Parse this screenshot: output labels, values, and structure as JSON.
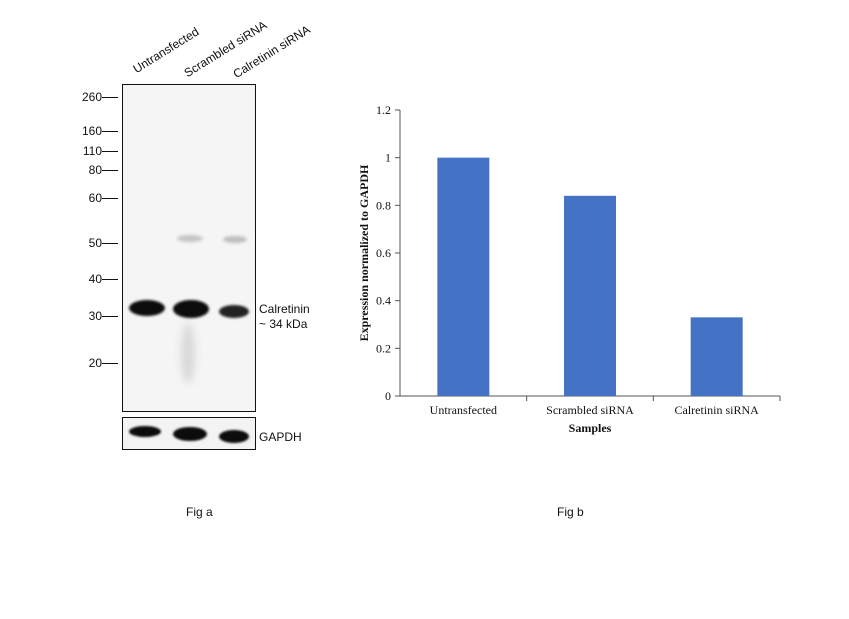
{
  "fig_a": {
    "lanes": [
      "Untransfected",
      "Scrambled siRNA",
      "Calretinin siRNA"
    ],
    "markers": [
      "260",
      "160",
      "110",
      "80",
      "60",
      "50",
      "40",
      "30",
      "20"
    ],
    "target_name": "Calretinin",
    "target_size": "~ 34 kDa",
    "control_label": "GAPDH",
    "caption": "Fig a"
  },
  "fig_b": {
    "caption": "Fig b"
  },
  "chart_data": {
    "type": "bar",
    "categories": [
      "Untransfected",
      "Scrambled siRNA",
      "Calretinin siRNA"
    ],
    "values": [
      1.0,
      0.84,
      0.33
    ],
    "title": "",
    "xlabel": "Samples",
    "ylabel": "Expression normalized to GAPDH",
    "ylim": [
      0,
      1.2
    ],
    "yticks": [
      "0",
      "0.2",
      "0.4",
      "0.6",
      "0.8",
      "1",
      "1.2"
    ],
    "grid": false,
    "legend": "none",
    "bar_color": "#4472c4"
  }
}
